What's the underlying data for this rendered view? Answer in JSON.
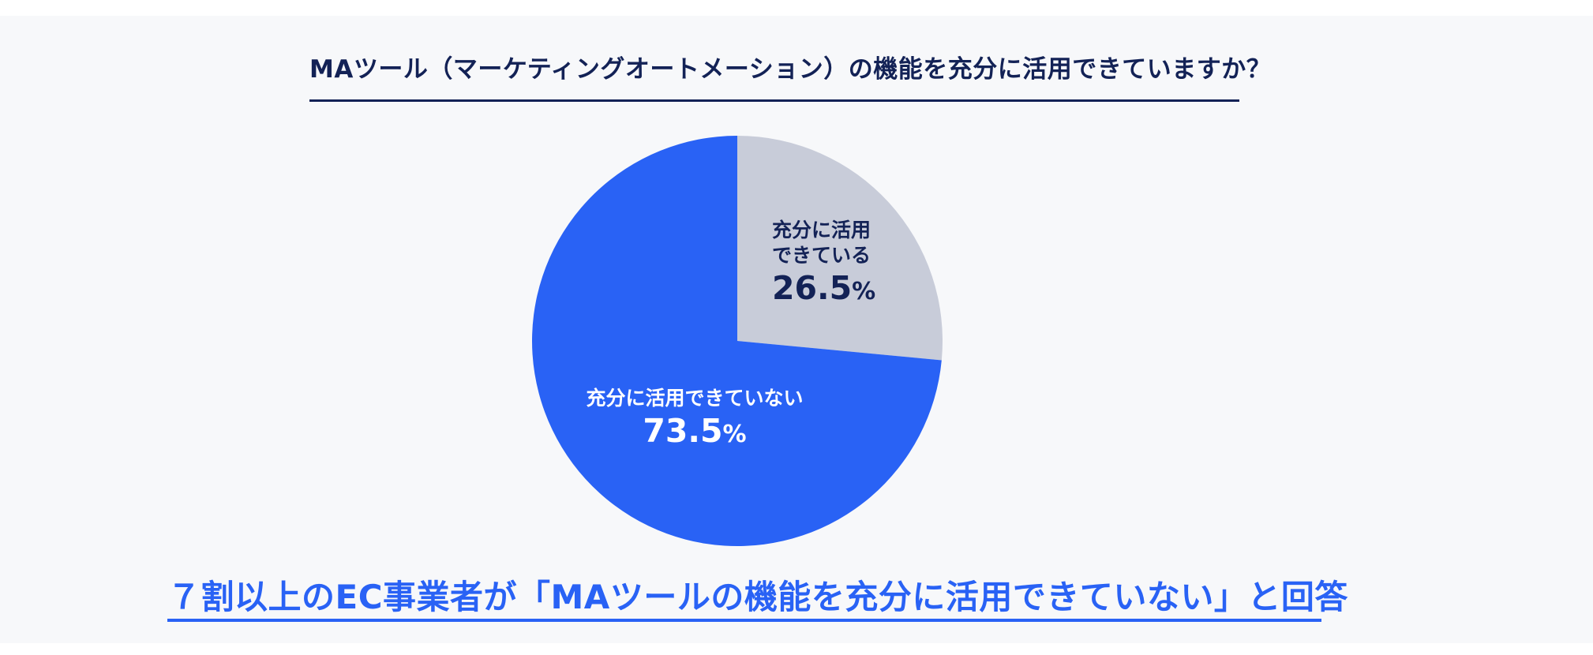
{
  "question": "MAツール（マーケティングオートメーション）の機能を充分に活用できていますか？",
  "conclusion": "７割以上のEC事業者が「MAツールの機能を充分に活用できていない」と回答",
  "colors": {
    "text_dark": "#132256",
    "accent_blue": "#2962f5",
    "slice_gray": "#c8ccd9",
    "background": "#f7f8fa"
  },
  "chart_data": {
    "type": "pie",
    "title": "MAツール（マーケティングオートメーション）の機能を充分に活用できていますか？",
    "slices": [
      {
        "label_lines": [
          "充分に活用",
          "できている"
        ],
        "value": 26.5,
        "value_text": "26.5",
        "unit": "%",
        "color": "#c8ccd9"
      },
      {
        "label_lines": [
          "充分に活用できていない"
        ],
        "value": 73.5,
        "value_text": "73.5",
        "unit": "%",
        "color": "#2962f5"
      }
    ],
    "start": "12 o'clock",
    "direction": "clockwise",
    "legend": "none"
  }
}
